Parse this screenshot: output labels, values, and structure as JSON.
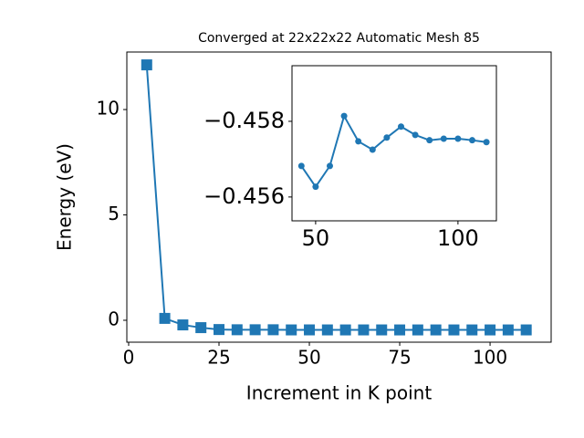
{
  "chart_data": [
    {
      "type": "line",
      "title": "Converged at 22x22x22 Automatic Mesh 85",
      "xlabel": "Increment in K point",
      "ylabel": "Energy (eV)",
      "x": [
        5,
        10,
        15,
        20,
        25,
        30,
        35,
        40,
        45,
        50,
        55,
        60,
        65,
        70,
        75,
        80,
        85,
        90,
        95,
        100,
        105,
        110
      ],
      "series": [
        {
          "color": "#1f77b4",
          "marker": "square",
          "values": [
            12.12,
            0.09,
            -0.22,
            -0.35,
            -0.44,
            -0.45,
            -0.45,
            -0.45,
            -0.457,
            -0.456,
            -0.457,
            -0.458,
            -0.457,
            -0.457,
            -0.458,
            -0.458,
            -0.458,
            -0.458,
            -0.458,
            -0.458,
            -0.458,
            -0.457
          ]
        }
      ],
      "xlim": [
        -0.5,
        116.9
      ],
      "ylim": [
        -1.04,
        12.73
      ],
      "xticks": [
        0,
        25,
        50,
        75,
        100
      ],
      "yticks": [
        0,
        5,
        10
      ]
    },
    {
      "type": "line",
      "x": [
        45,
        50,
        55,
        60,
        65,
        70,
        75,
        80,
        85,
        90,
        95,
        100,
        105,
        110
      ],
      "series": [
        {
          "color": "#1f77b4",
          "marker": "circle",
          "values": [
            -0.45682,
            -0.45627,
            -0.45682,
            -0.45814,
            -0.45747,
            -0.45725,
            -0.45757,
            -0.45786,
            -0.45764,
            -0.4575,
            -0.45754,
            -0.45754,
            -0.4575,
            -0.45745
          ]
        }
      ],
      "xlim": [
        41.7,
        113.5
      ],
      "ylim": [
        -0.45537,
        -0.45947
      ],
      "xticks": [
        50,
        100
      ],
      "yticks": [
        {
          "value": -0.458,
          "label": "−0.458"
        },
        {
          "value": -0.456,
          "label": "−0.456"
        }
      ]
    }
  ]
}
